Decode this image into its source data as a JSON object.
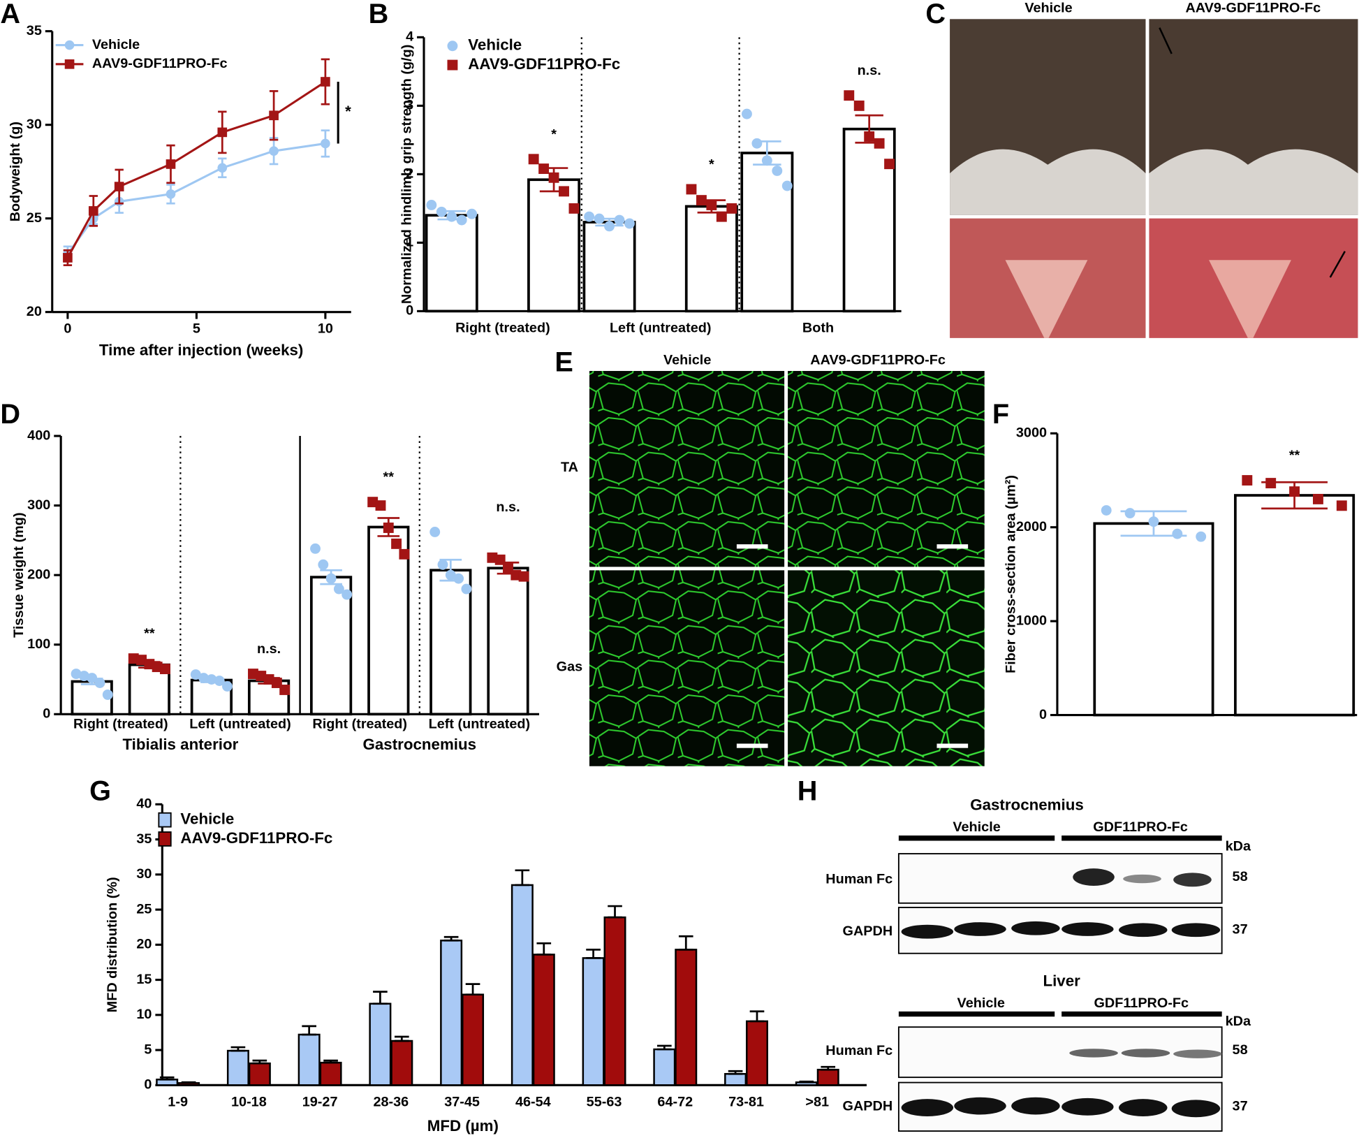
{
  "chart_data": [
    {
      "panel": "A",
      "type": "line",
      "xlabel": "Time after injection (weeks)",
      "ylabel": "Bodyweight (g)",
      "x": [
        0,
        1,
        2,
        4,
        6,
        8,
        10
      ],
      "xlim": [
        -0.6,
        11
      ],
      "xticks": [
        0,
        5,
        10
      ],
      "ylim": [
        20,
        35
      ],
      "yticks": [
        20,
        25,
        30,
        35
      ],
      "legend": "upper left",
      "annotation": "*",
      "series": [
        {
          "name": "Vehicle",
          "color": "#9ec7f2",
          "marker": "circle",
          "values": [
            23.1,
            25.0,
            25.9,
            26.3,
            27.7,
            28.6,
            29.0
          ],
          "errors": [
            0.4,
            0.3,
            0.6,
            0.5,
            0.5,
            0.7,
            0.7
          ]
        },
        {
          "name": "AAV9-GDF11PRO-Fc",
          "color": "#a31515",
          "marker": "square",
          "values": [
            22.9,
            25.4,
            26.7,
            27.9,
            29.6,
            30.5,
            32.3
          ],
          "errors": [
            0.4,
            0.8,
            0.9,
            1.0,
            1.1,
            1.3,
            1.2
          ]
        }
      ]
    },
    {
      "panel": "B",
      "type": "bar",
      "ylabel": "Normalized hindlimb grip strength (g/g)",
      "categories": [
        "Right (treated)",
        "Left (untreated)",
        "Both"
      ],
      "ylim": [
        0,
        4
      ],
      "yticks": [
        0,
        1,
        2,
        3,
        4
      ],
      "legend": "upper left",
      "bar_fill": "#ffffff",
      "error_bars": "both",
      "dividers": [
        "dotted",
        "dotted"
      ],
      "annotations": [
        "*",
        "*",
        "n.s."
      ],
      "series": [
        {
          "name": "Vehicle",
          "color": "#9ec7f2",
          "marker": "circle",
          "values": [
            1.4,
            1.3,
            2.31
          ],
          "errors": [
            0.06,
            0.05,
            0.17
          ],
          "points": [
            [
              1.55,
              1.45,
              1.38,
              1.33,
              1.42
            ],
            [
              1.38,
              1.35,
              1.24,
              1.33,
              1.28
            ],
            [
              2.88,
              2.45,
              2.2,
              2.05,
              1.83
            ]
          ]
        },
        {
          "name": "AAV9-GDF11PRO-Fc",
          "color": "#a31515",
          "marker": "square",
          "values": [
            1.92,
            1.53,
            2.66
          ],
          "errors": [
            0.17,
            0.09,
            0.2
          ],
          "points": [
            [
              2.22,
              2.08,
              1.95,
              1.75,
              1.5
            ],
            [
              1.78,
              1.62,
              1.55,
              1.38,
              1.5
            ],
            [
              3.15,
              3.0,
              2.55,
              2.45,
              2.15
            ]
          ]
        }
      ]
    },
    {
      "panel": "D",
      "type": "bar",
      "ylabel": "Tissue weight (mg)",
      "categories": [
        "Right (treated)",
        "Left (untreated)",
        "Right (treated)",
        "Left (untreated)"
      ],
      "supergroups": [
        "Tibialis anterior",
        "Gastrocnemius"
      ],
      "ylim": [
        0,
        400
      ],
      "yticks": [
        0,
        100,
        200,
        300,
        400
      ],
      "bar_fill": "#ffffff",
      "error_bars": "both",
      "dividers": [
        "dotted",
        "solid",
        "dotted"
      ],
      "annotations": [
        "**",
        "n.s.",
        "**",
        "n.s."
      ],
      "series": [
        {
          "color": "#9ec7f2",
          "marker": "circle",
          "values": [
            47,
            49,
            197,
            207
          ],
          "errors": [
            4,
            3,
            10,
            15
          ],
          "points": [
            [
              58,
              55,
              52,
              45,
              28
            ],
            [
              57,
              52,
              50,
              48,
              40
            ],
            [
              238,
              215,
              195,
              180,
              172
            ],
            [
              262,
              215,
              200,
              195,
              180
            ]
          ]
        },
        {
          "color": "#a31515",
          "marker": "square",
          "values": [
            71,
            48,
            269,
            210
          ],
          "errors": [
            4,
            4,
            13,
            8
          ],
          "points": [
            [
              80,
              78,
              72,
              68,
              65
            ],
            [
              58,
              55,
              50,
              45,
              35
            ],
            [
              305,
              300,
              268,
              245,
              230
            ],
            [
              225,
              222,
              210,
              200,
              198
            ]
          ]
        }
      ]
    },
    {
      "panel": "F",
      "type": "bar",
      "ylabel": "Fiber cross-section area (µm²)",
      "categories": [
        null
      ],
      "ylim": [
        0,
        3000
      ],
      "yticks": [
        0,
        1000,
        2000,
        3000
      ],
      "bar_fill": "#ffffff",
      "error_bars": "both",
      "annotations": [
        "**"
      ],
      "series": [
        {
          "color": "#9ec7f2",
          "marker": "circle",
          "values": [
            2040
          ],
          "errors": [
            130
          ],
          "points": [
            [
              2180,
              2150,
              2060,
              1930,
              1900
            ]
          ]
        },
        {
          "color": "#a31515",
          "marker": "square",
          "values": [
            2340
          ],
          "errors": [
            140
          ],
          "points": [
            [
              2500,
              2470,
              2380,
              2300,
              2230
            ]
          ]
        }
      ]
    },
    {
      "panel": "G",
      "type": "bar",
      "xlabel": "MFD (µm)",
      "ylabel": "MFD distribution (%)",
      "categories": [
        "1-9",
        "10-18",
        "19-27",
        "28-36",
        "37-45",
        "46-54",
        "55-63",
        "64-72",
        "73-81",
        ">81"
      ],
      "ylim": [
        0,
        40
      ],
      "yticks": [
        0,
        5,
        10,
        15,
        20,
        25,
        30,
        35,
        40
      ],
      "legend": "upper left",
      "error_bars": "up",
      "series": [
        {
          "name": "Vehicle",
          "color": "#a9c9f5",
          "values": [
            0.8,
            4.9,
            7.2,
            11.6,
            20.6,
            28.5,
            18.1,
            5.1,
            1.6,
            0.4
          ],
          "errors": [
            0.3,
            0.5,
            1.2,
            1.7,
            0.5,
            2.1,
            1.2,
            0.5,
            0.4,
            0.1
          ]
        },
        {
          "name": "AAV9-GDF11PRO-Fc",
          "color": "#a10c0c",
          "values": [
            0.3,
            3.1,
            3.2,
            6.3,
            12.9,
            18.6,
            23.9,
            19.3,
            9.1,
            2.2
          ],
          "errors": [
            0.1,
            0.4,
            0.3,
            0.6,
            1.5,
            1.6,
            1.6,
            1.9,
            1.4,
            0.4
          ]
        }
      ]
    }
  ],
  "images": {
    "C": {
      "panel": "C",
      "columns": [
        "Vehicle",
        "AAV9-GDF11PRO-Fc"
      ]
    },
    "E": {
      "panel": "E",
      "columns": [
        "Vehicle",
        "AAV9-GDF11PRO-Fc"
      ],
      "rows": [
        "TA",
        "Gas"
      ]
    },
    "H": {
      "panel": "H",
      "blots": [
        {
          "title": "Gastrocnemius",
          "groups": [
            "Vehicle",
            "GDF11PRO-Fc"
          ],
          "unit": "kDa",
          "rows": [
            {
              "label": "Human Fc",
              "size": 58
            },
            {
              "label": "GAPDH",
              "size": 37
            }
          ]
        },
        {
          "title": "Liver",
          "groups": [
            "Vehicle",
            "GDF11PRO-Fc"
          ],
          "unit": "kDa",
          "rows": [
            {
              "label": "Human Fc",
              "size": 58
            },
            {
              "label": "GAPDH",
              "size": 37
            }
          ]
        }
      ]
    }
  }
}
